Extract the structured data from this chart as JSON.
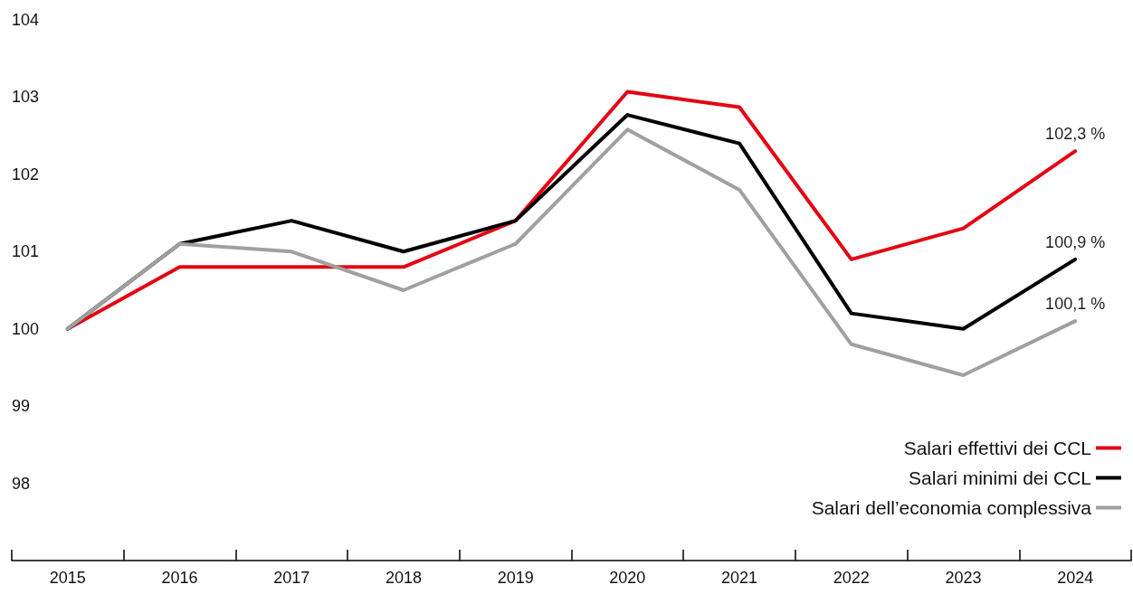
{
  "chart_data": {
    "type": "line",
    "categories": [
      "2015",
      "2016",
      "2017",
      "2018",
      "2019",
      "2020",
      "2021",
      "2022",
      "2023",
      "2024"
    ],
    "series": [
      {
        "name": "Salari effettivi dei CCL",
        "color": "#e30613",
        "values": [
          100,
          100.8,
          100.8,
          100.8,
          101.4,
          103.07,
          102.87,
          100.9,
          101.3,
          102.3
        ],
        "value_labels": [
          null,
          null,
          null,
          null,
          null,
          null,
          null,
          null,
          null,
          "102,3 %"
        ]
      },
      {
        "name": "Salari minimi dei CCL",
        "color": "#000000",
        "values": [
          100,
          101.1,
          101.4,
          101.0,
          101.4,
          102.77,
          102.4,
          100.2,
          100.0,
          100.9
        ],
        "value_labels": [
          null,
          null,
          null,
          null,
          null,
          null,
          null,
          null,
          null,
          "100,9 %"
        ]
      },
      {
        "name": "Salari dell’economia complessiva",
        "color": "#a0a0a0",
        "values": [
          100,
          101.1,
          101.0,
          100.5,
          101.1,
          102.58,
          101.8,
          99.8,
          99.4,
          100.1
        ],
        "value_labels": [
          null,
          null,
          null,
          null,
          null,
          null,
          null,
          null,
          null,
          "100,1 %"
        ]
      }
    ],
    "ylim": [
      97,
      104
    ],
    "yticks": [
      98,
      99,
      100,
      101,
      102,
      103,
      104
    ],
    "grid": false,
    "legend": "bottom right"
  }
}
